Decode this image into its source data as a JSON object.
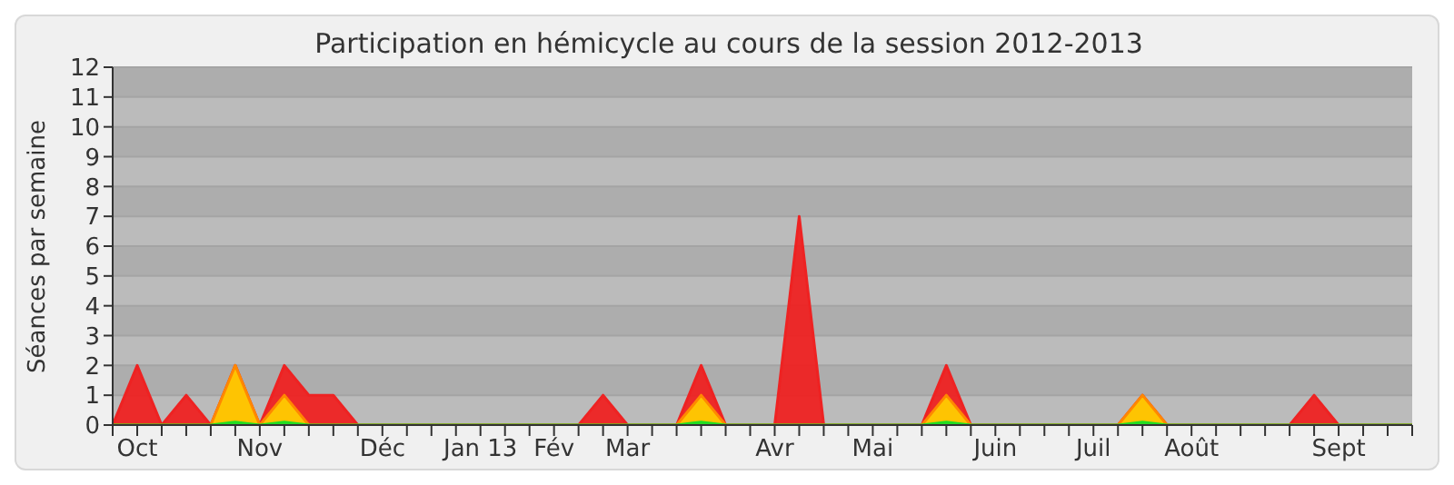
{
  "chart_data": {
    "type": "area",
    "title": "Participation en hémicycle au cours de la session 2012-2013",
    "ylabel": "Séances par semaine",
    "categories": [
      null,
      "Oct",
      null,
      null,
      null,
      null,
      "Nov",
      null,
      null,
      null,
      null,
      "Déc",
      null,
      null,
      null,
      "Jan 13",
      null,
      null,
      "Fév",
      null,
      null,
      "Mar",
      null,
      null,
      null,
      null,
      null,
      "Avr",
      null,
      null,
      null,
      "Mai",
      null,
      null,
      null,
      null,
      "Juin",
      null,
      null,
      null,
      "Juil",
      null,
      null,
      null,
      "Août",
      null,
      null,
      null,
      null,
      null,
      "Sept",
      null,
      null,
      null
    ],
    "series": [
      {
        "color": "#ee2222",
        "values": [
          0,
          2,
          0,
          1,
          0,
          2,
          0,
          2,
          1,
          1,
          0,
          0,
          0,
          0,
          0,
          0,
          0,
          0,
          0,
          0,
          1,
          0,
          0,
          0,
          2,
          0,
          0,
          0,
          7,
          0,
          0,
          0,
          0,
          0,
          2,
          0,
          0,
          0,
          0,
          0,
          0,
          0,
          1,
          0,
          0,
          0,
          0,
          0,
          0,
          1,
          0,
          0,
          0,
          0
        ]
      },
      {
        "color": "#ffcc00",
        "values": [
          0,
          0,
          0,
          0,
          0,
          2,
          0,
          1,
          0,
          0,
          0,
          0,
          0,
          0,
          0,
          0,
          0,
          0,
          0,
          0,
          0,
          0,
          0,
          0,
          1,
          0,
          0,
          0,
          0,
          0,
          0,
          0,
          0,
          0,
          1,
          0,
          0,
          0,
          0,
          0,
          0,
          0,
          1,
          0,
          0,
          0,
          0,
          0,
          0,
          0,
          0,
          0,
          0,
          0
        ]
      },
      {
        "color": "#22dd22",
        "values": [
          0,
          0,
          0,
          0,
          0,
          0.1,
          0,
          0.1,
          0,
          0,
          0,
          0,
          0,
          0,
          0,
          0,
          0,
          0,
          0,
          0,
          0,
          0,
          0,
          0,
          0.1,
          0,
          0,
          0,
          0,
          0,
          0,
          0,
          0,
          0,
          0.1,
          0,
          0,
          0,
          0,
          0,
          0,
          0,
          0.1,
          0,
          0,
          0,
          0,
          0,
          0,
          0,
          0,
          0,
          0,
          0
        ]
      }
    ],
    "ylim": [
      0,
      12
    ],
    "yticks": [
      0,
      1,
      2,
      3,
      4,
      5,
      6,
      7,
      8,
      9,
      10,
      11,
      12
    ],
    "grid": "y",
    "marker": "none"
  }
}
